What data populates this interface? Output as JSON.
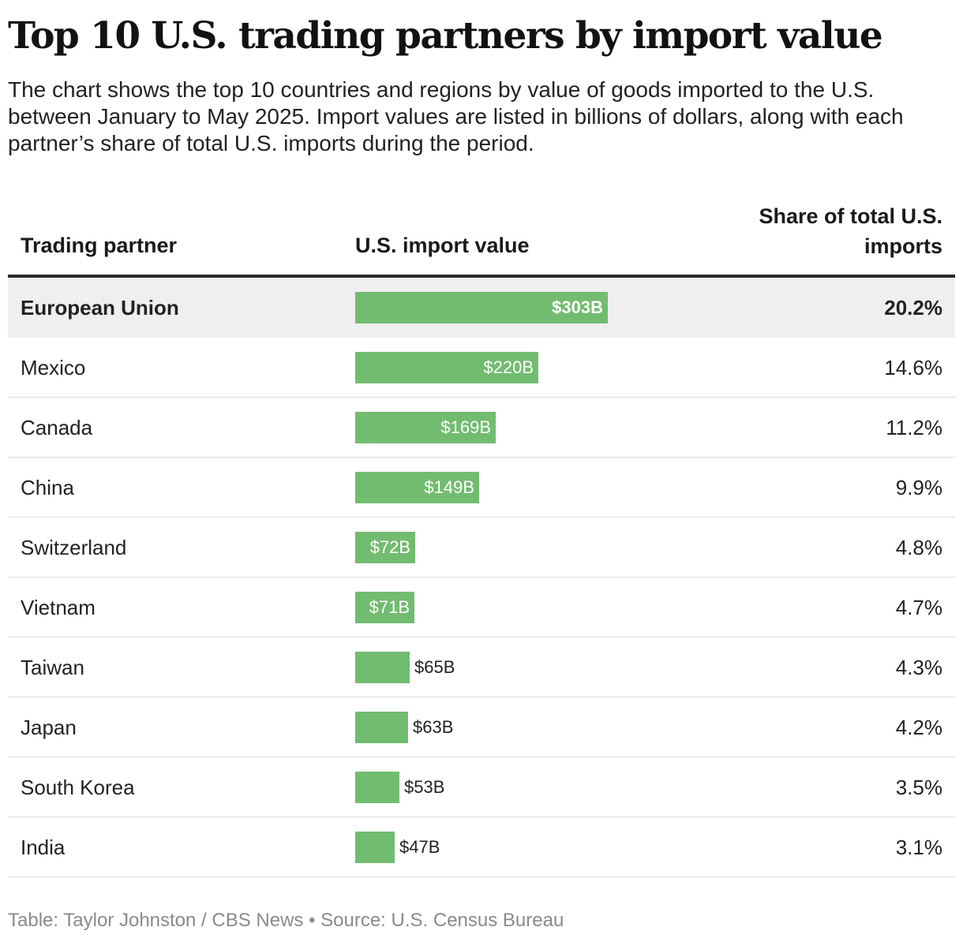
{
  "title": "Top 10 U.S. trading partners by import value",
  "subtitle": "The chart shows the top 10 countries and regions by value of goods imported to the U.S. between January to May 2025. Import values are listed in billions of dollars, along with each partner’s share of total U.S. imports during the period.",
  "headers": {
    "partner": "Trading partner",
    "value": "U.S. import value",
    "share_line1": "Share of total U.S.",
    "share_line2": "imports"
  },
  "footer": "Table: Taylor Johnston / CBS News • Source: U.S. Census Bureau",
  "colors": {
    "bar": "#72bc6f",
    "highlight_row": "#efefef"
  },
  "chart_data": {
    "type": "table",
    "highlight": "European Union",
    "xlim": [
      0,
      303
    ],
    "columns": [
      "Trading partner",
      "U.S. import value",
      "Share of total U.S. imports"
    ],
    "rows": [
      {
        "partner": "European Union",
        "value": 303,
        "label": "$303B",
        "share": "20.2%"
      },
      {
        "partner": "Mexico",
        "value": 220,
        "label": "$220B",
        "share": "14.6%"
      },
      {
        "partner": "Canada",
        "value": 169,
        "label": "$169B",
        "share": "11.2%"
      },
      {
        "partner": "China",
        "value": 149,
        "label": "$149B",
        "share": "9.9%"
      },
      {
        "partner": "Switzerland",
        "value": 72,
        "label": "$72B",
        "share": "4.8%"
      },
      {
        "partner": "Vietnam",
        "value": 71,
        "label": "$71B",
        "share": "4.7%"
      },
      {
        "partner": "Taiwan",
        "value": 65,
        "label": "$65B",
        "share": "4.3%"
      },
      {
        "partner": "Japan",
        "value": 63,
        "label": "$63B",
        "share": "4.2%"
      },
      {
        "partner": "South Korea",
        "value": 53,
        "label": "$53B",
        "share": "3.5%"
      },
      {
        "partner": "India",
        "value": 47,
        "label": "$47B",
        "share": "3.1%"
      }
    ]
  }
}
